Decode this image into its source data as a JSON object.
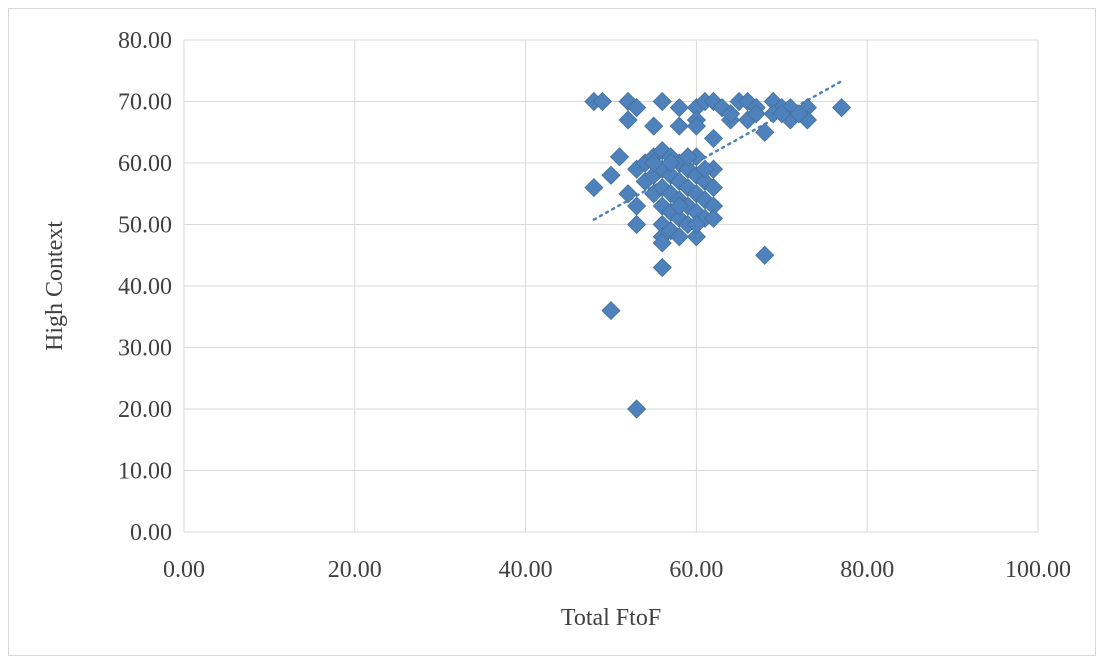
{
  "chart_data": {
    "type": "scatter",
    "title": "",
    "xlabel": "Total FtoF",
    "ylabel": "High Context",
    "xlim": [
      0,
      100
    ],
    "ylim": [
      0,
      80
    ],
    "x_ticks": [
      "0.00",
      "20.00",
      "40.00",
      "60.00",
      "80.00",
      "100.00"
    ],
    "y_ticks": [
      "0.00",
      "10.00",
      "20.00",
      "30.00",
      "40.00",
      "50.00",
      "60.00",
      "70.00",
      "80.00"
    ],
    "grid": true,
    "legend": "none",
    "marker": "diamond",
    "marker_color": "#4f81bd",
    "trendline": {
      "type": "linear",
      "style": "dotted",
      "color": "#4f81bd",
      "x": [
        48,
        77
      ],
      "y": [
        50.8,
        73.3
      ]
    },
    "points": [
      [
        48,
        70
      ],
      [
        49,
        70
      ],
      [
        52,
        70
      ],
      [
        53,
        69
      ],
      [
        56,
        70
      ],
      [
        58,
        69
      ],
      [
        60,
        69
      ],
      [
        61,
        70
      ],
      [
        62,
        70
      ],
      [
        63,
        69
      ],
      [
        65,
        70
      ],
      [
        66,
        70
      ],
      [
        67,
        69
      ],
      [
        69,
        70
      ],
      [
        70,
        69
      ],
      [
        71,
        69
      ],
      [
        73,
        69
      ],
      [
        77,
        69
      ],
      [
        52,
        67
      ],
      [
        55,
        66
      ],
      [
        58,
        66
      ],
      [
        60,
        67
      ],
      [
        62,
        64
      ],
      [
        64,
        67
      ],
      [
        66,
        67
      ],
      [
        68,
        65
      ],
      [
        69,
        68
      ],
      [
        71,
        67
      ],
      [
        73,
        67
      ],
      [
        60,
        66
      ],
      [
        64,
        68
      ],
      [
        67,
        68
      ],
      [
        70,
        68
      ],
      [
        72,
        68
      ],
      [
        48,
        56
      ],
      [
        50,
        58
      ],
      [
        51,
        61
      ],
      [
        52,
        55
      ],
      [
        53,
        59
      ],
      [
        53,
        53
      ],
      [
        53,
        50
      ],
      [
        54,
        60
      ],
      [
        54,
        57
      ],
      [
        55,
        61
      ],
      [
        55,
        58
      ],
      [
        55,
        55
      ],
      [
        56,
        62
      ],
      [
        56,
        59
      ],
      [
        56,
        56
      ],
      [
        56,
        53
      ],
      [
        56,
        50
      ],
      [
        56,
        48
      ],
      [
        56,
        47
      ],
      [
        56,
        43
      ],
      [
        57,
        61
      ],
      [
        57,
        58
      ],
      [
        57,
        55
      ],
      [
        57,
        52
      ],
      [
        57,
        49
      ],
      [
        58,
        60
      ],
      [
        58,
        57
      ],
      [
        58,
        54
      ],
      [
        58,
        51
      ],
      [
        58,
        48
      ],
      [
        59,
        59
      ],
      [
        59,
        56
      ],
      [
        59,
        53
      ],
      [
        59,
        50
      ],
      [
        60,
        61
      ],
      [
        60,
        58
      ],
      [
        60,
        55
      ],
      [
        60,
        52
      ],
      [
        60,
        48
      ],
      [
        61,
        57
      ],
      [
        61,
        54
      ],
      [
        61,
        51
      ],
      [
        62,
        59
      ],
      [
        62,
        56
      ],
      [
        62,
        53
      ],
      [
        62,
        51
      ],
      [
        55,
        60
      ],
      [
        57,
        60
      ],
      [
        59,
        61
      ],
      [
        61,
        59
      ],
      [
        58,
        53
      ],
      [
        60,
        50
      ],
      [
        68,
        45
      ],
      [
        50,
        36
      ],
      [
        53,
        20
      ]
    ]
  }
}
